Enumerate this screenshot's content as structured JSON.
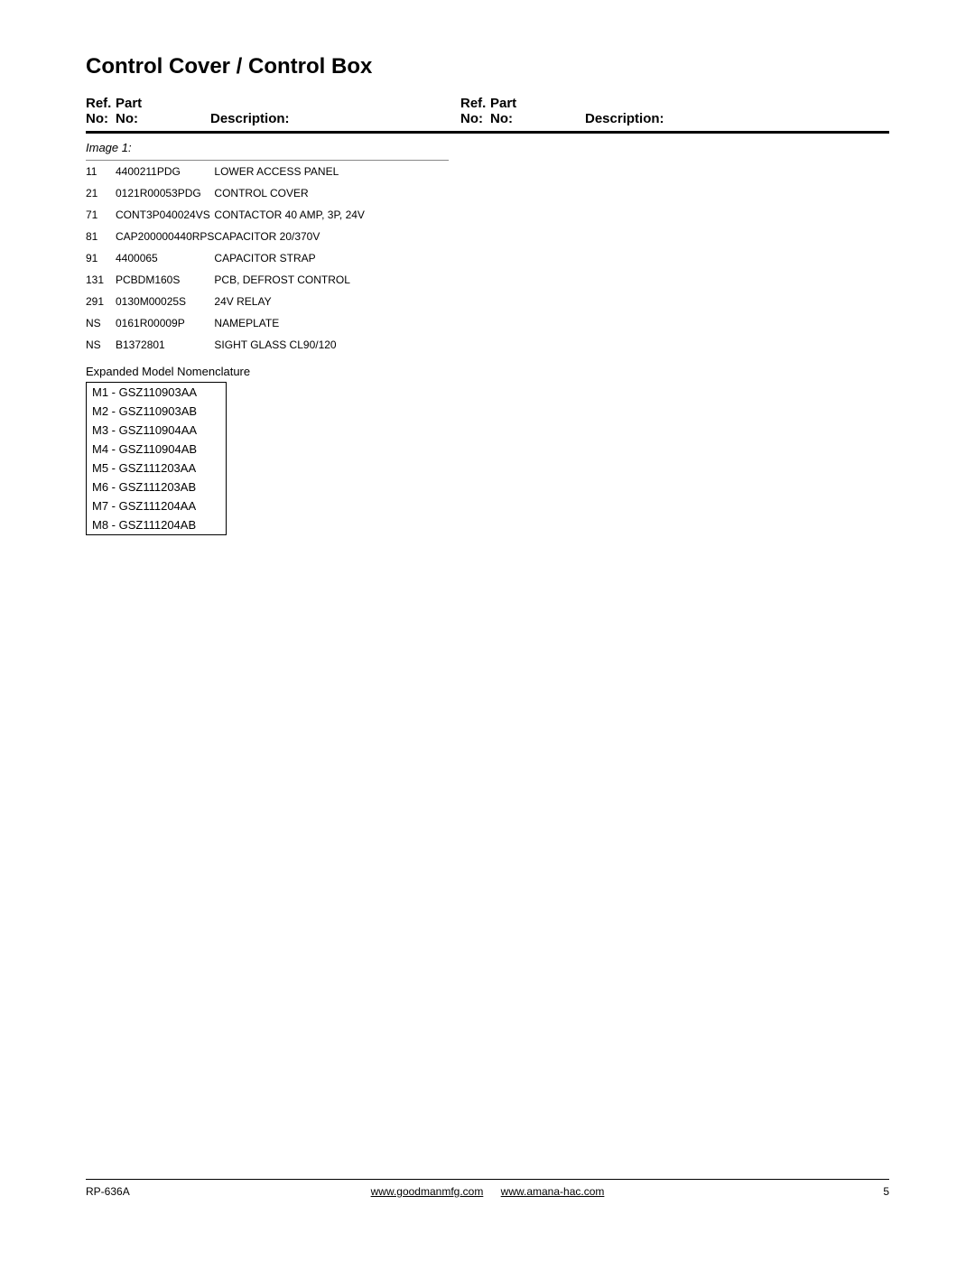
{
  "title": "Control Cover / Control Box",
  "headers": {
    "ref_line1": "Ref.",
    "ref_line2": "No:",
    "part_line1": "Part",
    "part_line2": "No:",
    "description": "Description:"
  },
  "image_label": "Image 1:",
  "parts": [
    {
      "ref": "11",
      "part": "4400211PDG",
      "desc": "LOWER ACCESS PANEL"
    },
    {
      "ref": "21",
      "part": "0121R00053PDG",
      "desc": "CONTROL COVER"
    },
    {
      "ref": "71",
      "part": "CONT3P040024VS",
      "desc": "CONTACTOR 40 AMP, 3P, 24V"
    },
    {
      "ref": "81",
      "part": "CAP200000440RPS",
      "desc": "CAPACITOR 20/370V"
    },
    {
      "ref": "91",
      "part": "4400065",
      "desc": "CAPACITOR STRAP"
    },
    {
      "ref": "131",
      "part": "PCBDM160S",
      "desc": "PCB, DEFROST CONTROL"
    },
    {
      "ref": "291",
      "part": "0130M00025S",
      "desc": "24V RELAY"
    },
    {
      "ref": "NS",
      "part": "0161R00009P",
      "desc": "NAMEPLATE"
    },
    {
      "ref": "NS",
      "part": "B1372801",
      "desc": "SIGHT GLASS CL90/120"
    }
  ],
  "nomenclature_label": "Expanded Model Nomenclature",
  "models": [
    "M1 - GSZ110903AA",
    "M2 - GSZ110903AB",
    "M3 - GSZ110904AA",
    "M4 - GSZ110904AB",
    "M5 - GSZ111203AA",
    "M6 - GSZ111203AB",
    "M7 - GSZ111204AA",
    "M8 - GSZ111204AB"
  ],
  "footer": {
    "doc_id": "RP-636A",
    "link1": "www.goodmanmfg.com",
    "link2": "www.amana-hac.com",
    "page_num": "5"
  }
}
